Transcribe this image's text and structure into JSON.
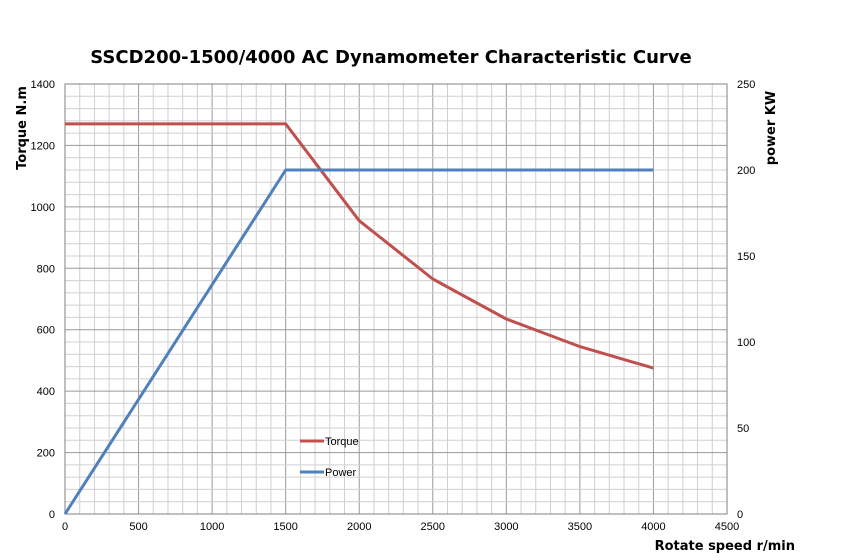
{
  "chart_data": {
    "type": "line",
    "title": "SSCD200-1500/4000 AC Dynamometer Characteristic Curve",
    "xlabel": "Rotate speed r/min",
    "ylabel_left": "Torque N.m",
    "ylabel_right": "power KW",
    "xlim": [
      0,
      4500
    ],
    "ylim_left": [
      0,
      1400
    ],
    "ylim_right": [
      0,
      250
    ],
    "x_ticks": [
      "0",
      "500",
      "1000",
      "1500",
      "2000",
      "2500",
      "3000",
      "3500",
      "4000",
      "4500"
    ],
    "y_left_ticks": [
      "0",
      "200",
      "400",
      "600",
      "800",
      "1000",
      "1200",
      "1400"
    ],
    "y_right_ticks": [
      "0",
      "50",
      "100",
      "150",
      "200",
      "250"
    ],
    "grid": true,
    "legend_position": "bottom-center",
    "series": [
      {
        "name": "Torque",
        "axis": "left",
        "color": "#C0504D",
        "x": [
          0,
          1500,
          2000,
          2500,
          3000,
          3500,
          4000
        ],
        "y": [
          1270,
          1270,
          955,
          765,
          635,
          545,
          475
        ]
      },
      {
        "name": "Power",
        "axis": "right",
        "color": "#4F81BD",
        "x": [
          0,
          1500,
          4000
        ],
        "y": [
          0,
          200,
          200
        ]
      }
    ]
  }
}
